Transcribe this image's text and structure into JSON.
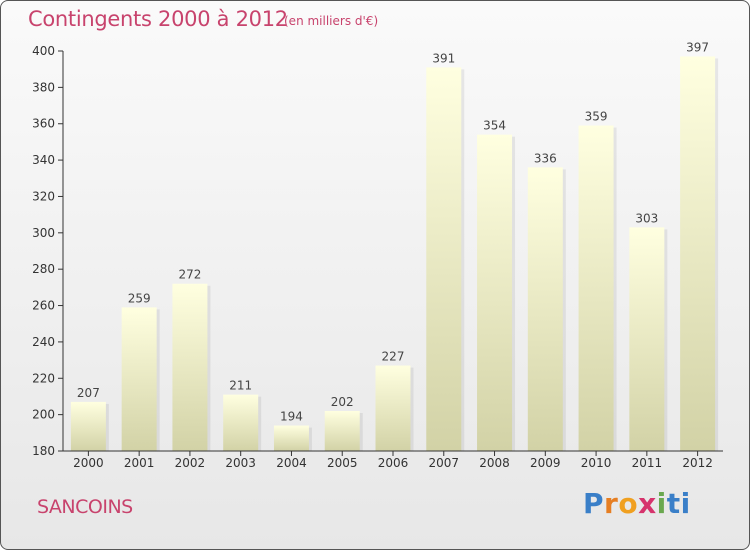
{
  "header": {
    "title": "Contingents 2000 à 2012",
    "subtitle": "(en milliers d'€)"
  },
  "footer": {
    "commune": "SANCOINS",
    "logo_letters": [
      "P",
      "r",
      "o",
      "x",
      "i",
      "ti"
    ]
  },
  "colors": {
    "title": "#c8436d",
    "bar_top": "#ffffe0",
    "bar_bottom": "#d4d4a8",
    "axis": "#333333"
  },
  "chart_data": {
    "type": "bar",
    "title": "Contingents 2000 à 2012",
    "subtitle": "(en milliers d'€)",
    "xlabel": "",
    "ylabel": "",
    "categories": [
      "2000",
      "2001",
      "2002",
      "2003",
      "2004",
      "2005",
      "2006",
      "2007",
      "2008",
      "2009",
      "2010",
      "2011",
      "2012"
    ],
    "values": [
      207,
      259,
      272,
      211,
      194,
      202,
      227,
      391,
      354,
      336,
      359,
      303,
      397
    ],
    "ylim": [
      180,
      400
    ],
    "yticks": [
      180,
      200,
      220,
      240,
      260,
      280,
      300,
      320,
      340,
      360,
      380,
      400
    ],
    "grid": false,
    "legend": "none"
  }
}
